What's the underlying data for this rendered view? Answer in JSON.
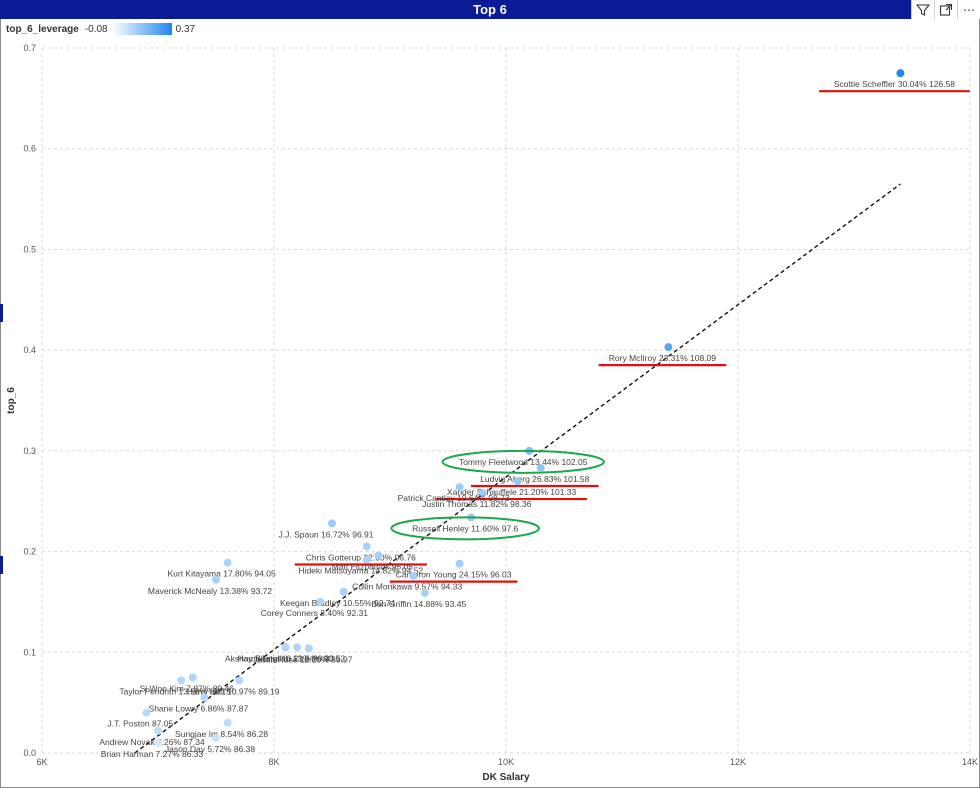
{
  "title": "Top 6",
  "icons": [
    "filter-icon",
    "focus-mode-icon",
    "more-options-icon"
  ],
  "legend": {
    "field": "top_6_leverage",
    "min": "-0.08",
    "max": "0.37"
  },
  "chart_data": {
    "type": "scatter",
    "title": "Top 6",
    "xlabel": "DK Salary",
    "ylabel": "top_6",
    "xlim": [
      6000,
      14000
    ],
    "ylim": [
      0.0,
      0.7
    ],
    "x_ticks": [
      6000,
      8000,
      10000,
      12000,
      14000
    ],
    "x_tick_labels": [
      "6K",
      "8K",
      "10K",
      "12K",
      "14K"
    ],
    "y_ticks": [
      0.0,
      0.1,
      0.2,
      0.3,
      0.4,
      0.5,
      0.6,
      0.7
    ],
    "y_tick_labels": [
      "0.0",
      "0.1",
      "0.2",
      "0.3",
      "0.4",
      "0.5",
      "0.6",
      "0.7"
    ],
    "color_field": "top_6_leverage",
    "trendline": {
      "style": "dashed",
      "from": [
        6800,
        0.0
      ],
      "to": [
        13400,
        0.565
      ]
    },
    "points": [
      {
        "label": "Scottie Scheffler 30.04% 126.58",
        "x": 13400,
        "y": 0.675,
        "leverage": 0.37
      },
      {
        "label": "Rory McIlroy 23.31% 108.09",
        "x": 11400,
        "y": 0.403,
        "leverage": 0.22
      },
      {
        "label": "Tommy Fleetwood 13.44% 102.05",
        "x": 10200,
        "y": 0.3,
        "leverage": 0.12
      },
      {
        "label": "Ludvig Aberg 26.83% 101.58",
        "x": 10300,
        "y": 0.283,
        "leverage": 0.08
      },
      {
        "label": "Xander Schauffele 21.20% 101.33",
        "x": 10100,
        "y": 0.27,
        "leverage": 0.07
      },
      {
        "label": "Justin Thomas 11.82% 98.36",
        "x": 9800,
        "y": 0.258,
        "leverage": 0.06
      },
      {
        "label": "Patrick Cantlay 19.64% 98.73",
        "x": 9600,
        "y": 0.264,
        "leverage": 0.05
      },
      {
        "label": "J.J. Spaun 16.72% 96.91",
        "x": 8500,
        "y": 0.228,
        "leverage": 0.05
      },
      {
        "label": "Russell Henley 11.60% 97.6",
        "x": 9700,
        "y": 0.234,
        "leverage": 0.06
      },
      {
        "label": "Chris Gotterup 22.50% 96.76",
        "x": 8800,
        "y": 0.205,
        "leverage": 0.03
      },
      {
        "label": "Matt Fitzpatrick 95.05",
        "x": 8900,
        "y": 0.196,
        "leverage": 0.03
      },
      {
        "label": "Hideki Matsuyama 14.82% 94.52",
        "x": 8800,
        "y": 0.192,
        "leverage": 0.03
      },
      {
        "label": "Cameron Young 24.15% 96.03",
        "x": 9600,
        "y": 0.188,
        "leverage": 0.04
      },
      {
        "label": "Kurt Kitayama 17.80% 94.05",
        "x": 7600,
        "y": 0.189,
        "leverage": 0.02
      },
      {
        "label": "Collin Morikawa 9.57% 94.33",
        "x": 9200,
        "y": 0.176,
        "leverage": 0.04
      },
      {
        "label": "Maverick McNealy 13.38% 93.72",
        "x": 7500,
        "y": 0.172,
        "leverage": 0.02
      },
      {
        "label": "Keegan Bradley 10.55% 92.74",
        "x": 8600,
        "y": 0.16,
        "leverage": 0.02
      },
      {
        "label": "Ben Griffin 14.88% 93.45",
        "x": 9300,
        "y": 0.159,
        "leverage": 0.03
      },
      {
        "label": "Corey Conners 8.40% 92.31",
        "x": 8400,
        "y": 0.15,
        "leverage": 0.02
      },
      {
        "label": "Harris English 13.84% 90.52",
        "x": 8200,
        "y": 0.105,
        "leverage": 0.01
      },
      {
        "label": "Akshay Bhatia 10.21% 90.33",
        "x": 8100,
        "y": 0.105,
        "leverage": 0.01
      },
      {
        "label": "Justin Rose 12.20% 89.97",
        "x": 8300,
        "y": 0.104,
        "leverage": 0.01
      },
      {
        "label": "Si Woo Kim 7.87% 89.46",
        "x": 7300,
        "y": 0.075,
        "leverage": 0.01
      },
      {
        "label": "Taylor Pendrith 13.58% 88.15",
        "x": 7200,
        "y": 0.072,
        "leverage": 0.0
      },
      {
        "label": "Harry Hall 10.97% 89.19",
        "x": 7700,
        "y": 0.072,
        "leverage": 0.0
      },
      {
        "label": "Shane Lowry 6.86% 87.87",
        "x": 7400,
        "y": 0.055,
        "leverage": 0.0
      },
      {
        "label": "J.T. Poston 87.05",
        "x": 6900,
        "y": 0.04,
        "leverage": -0.01
      },
      {
        "label": "Sungjae Im 8.54% 86.28",
        "x": 7600,
        "y": 0.03,
        "leverage": -0.02
      },
      {
        "label": "Andrew Novak 8.26% 87.34",
        "x": 7000,
        "y": 0.022,
        "leverage": -0.03
      },
      {
        "label": "Jason Day 5.72% 86.38",
        "x": 7500,
        "y": 0.015,
        "leverage": -0.05
      },
      {
        "label": "Brian Harman 7.27% 86.33",
        "x": 7000,
        "y": 0.01,
        "leverage": -0.08
      }
    ],
    "annotations": {
      "green_ovals": [
        "Tommy Fleetwood 13.44% 102.05",
        "Russell Henley 11.60% 97.6"
      ],
      "red_underlines": [
        "Scottie Scheffler 30.04% 126.58",
        "Rory McIlroy 23.31% 108.09",
        "Ludvig Aberg 26.83% 101.58",
        "Xander Schauffele 21.20% 101.33",
        "Chris Gotterup 22.50% 96.76",
        "Cameron Young 24.15% 96.03"
      ]
    }
  }
}
